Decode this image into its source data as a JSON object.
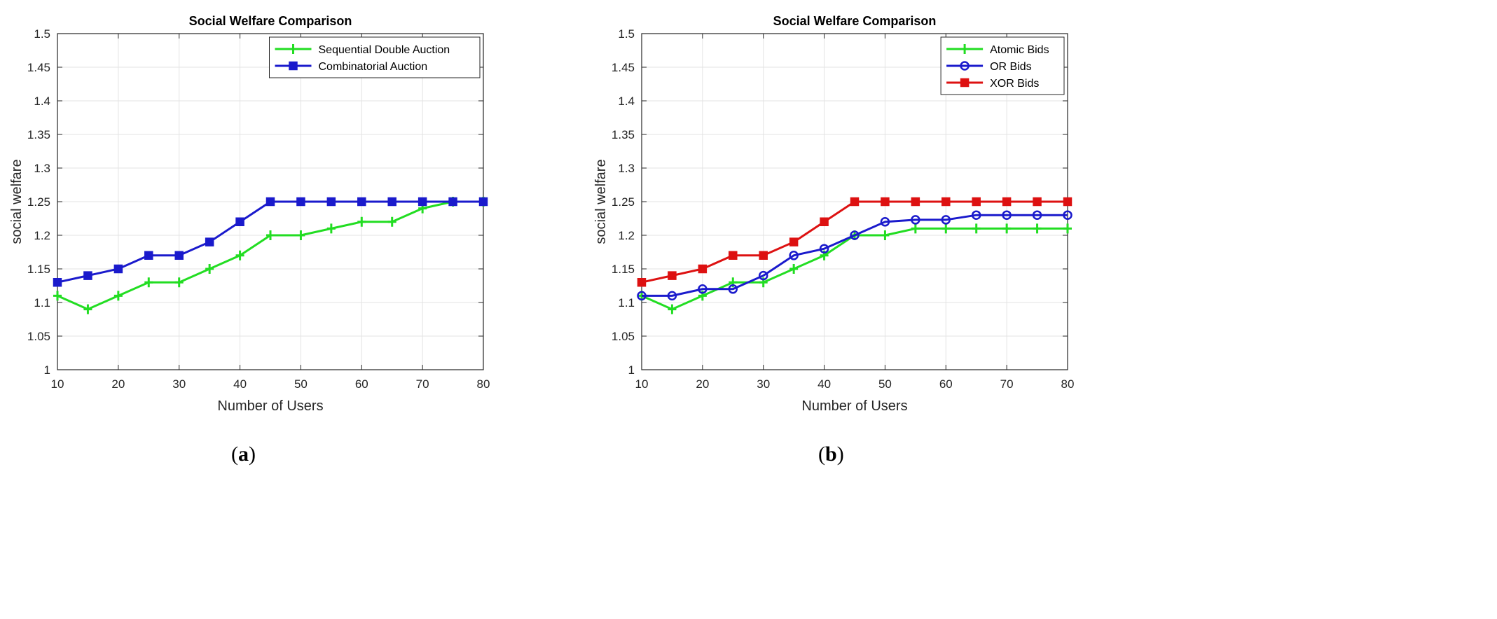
{
  "chart_data": [
    {
      "type": "line",
      "panel_label": "a",
      "title": "Social Welfare Comparison",
      "xlabel": "Number of Users",
      "ylabel": "social welfare",
      "xlim": [
        10,
        80
      ],
      "ylim": [
        1,
        1.5
      ],
      "xticks": [
        "10",
        "20",
        "30",
        "40",
        "50",
        "60",
        "70",
        "80"
      ],
      "yticks": [
        "1",
        "1.05",
        "1.1",
        "1.15",
        "1.2",
        "1.25",
        "1.3",
        "1.35",
        "1.4",
        "1.45",
        "1.5"
      ],
      "grid": true,
      "legend_position": "top-right",
      "x": [
        10,
        15,
        20,
        25,
        30,
        35,
        40,
        45,
        50,
        55,
        60,
        65,
        70,
        75,
        80
      ],
      "series": [
        {
          "name": "Sequential Double Auction",
          "color": "#22dd22",
          "marker": "plus",
          "values": [
            1.11,
            1.09,
            1.11,
            1.13,
            1.13,
            1.15,
            1.17,
            1.2,
            1.2,
            1.21,
            1.22,
            1.22,
            1.24,
            1.25,
            1.25
          ]
        },
        {
          "name": "Combinatorial Auction",
          "color": "#1a1acc",
          "marker": "square-star",
          "values": [
            1.13,
            1.14,
            1.15,
            1.17,
            1.17,
            1.19,
            1.22,
            1.25,
            1.25,
            1.25,
            1.25,
            1.25,
            1.25,
            1.25,
            1.25
          ]
        }
      ]
    },
    {
      "type": "line",
      "panel_label": "b",
      "title": "Social Welfare Comparison",
      "xlabel": "Number of Users",
      "ylabel": "social welfare",
      "xlim": [
        10,
        80
      ],
      "ylim": [
        1,
        1.5
      ],
      "xticks": [
        "10",
        "20",
        "30",
        "40",
        "50",
        "60",
        "70",
        "80"
      ],
      "yticks": [
        "1",
        "1.05",
        "1.1",
        "1.15",
        "1.2",
        "1.25",
        "1.3",
        "1.35",
        "1.4",
        "1.45",
        "1.5"
      ],
      "grid": true,
      "legend_position": "top-right",
      "x": [
        10,
        15,
        20,
        25,
        30,
        35,
        40,
        45,
        50,
        55,
        60,
        65,
        70,
        75,
        80
      ],
      "series": [
        {
          "name": "Atomic Bids",
          "color": "#22dd22",
          "marker": "plus",
          "values": [
            1.11,
            1.09,
            1.11,
            1.13,
            1.13,
            1.15,
            1.17,
            1.2,
            1.2,
            1.21,
            1.21,
            1.21,
            1.21,
            1.21,
            1.21
          ]
        },
        {
          "name": "OR Bids",
          "color": "#1a1acc",
          "marker": "circle",
          "values": [
            1.11,
            1.11,
            1.12,
            1.12,
            1.14,
            1.17,
            1.18,
            1.2,
            1.22,
            1.223,
            1.223,
            1.23,
            1.23,
            1.23,
            1.23
          ]
        },
        {
          "name": "XOR Bids",
          "color": "#dd1111",
          "marker": "square-star",
          "values": [
            1.13,
            1.14,
            1.15,
            1.17,
            1.17,
            1.19,
            1.22,
            1.25,
            1.25,
            1.25,
            1.25,
            1.25,
            1.25,
            1.25,
            1.25
          ]
        }
      ]
    }
  ],
  "captions": {
    "a": "a",
    "b": "b"
  }
}
